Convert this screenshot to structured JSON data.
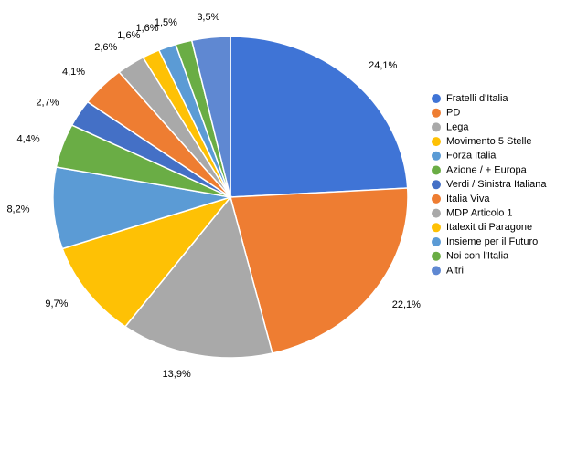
{
  "chart_data": {
    "type": "pie",
    "categories": [
      "Fratelli d'Italia",
      "PD",
      "Lega",
      "Movimento 5 Stelle",
      "Forza Italia",
      "Azione / + Europa",
      "Verdi / Sinistra Italiana",
      "Italia Viva",
      "MDP Articolo 1",
      "Italexit di Paragone",
      "Insieme per il Futuro",
      "Noi con l'Italia",
      "Altri"
    ],
    "values": [
      24.1,
      22.1,
      13.9,
      9.7,
      8.2,
      4.4,
      2.7,
      4.1,
      2.6,
      1.6,
      1.6,
      1.5,
      3.5
    ],
    "value_labels": [
      "24,1%",
      "22,1%",
      "13,9%",
      "9,7%",
      "8,2%",
      "4,4%",
      "2,7%",
      "4,1%",
      "2,6%",
      "1,6%",
      "1,6%",
      "1,5%",
      "3,5%"
    ],
    "colors": [
      "#3f74d6",
      "#ee7d32",
      "#a9a9a9",
      "#fec105",
      "#5b9bd5",
      "#6aad45",
      "#4470c6",
      "#ee7d32",
      "#a9a9a9",
      "#fec105",
      "#5b9bd5",
      "#6aad45",
      "#5f88d2"
    ],
    "legend": "right"
  }
}
